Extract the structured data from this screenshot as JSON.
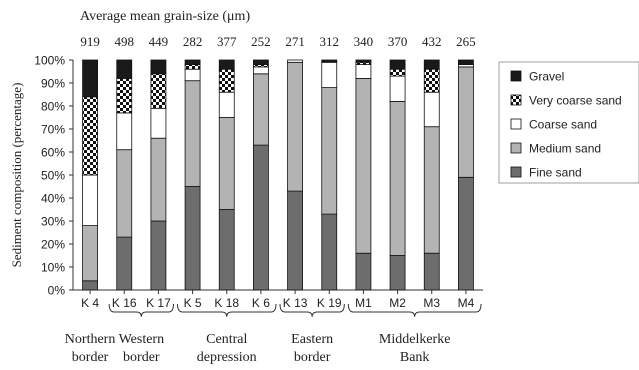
{
  "chart_data": {
    "type": "bar",
    "stacked": true,
    "top_title": "Average mean grain-size (μm)",
    "ylabel": "Sediment composition (percentage)",
    "xlabel": "",
    "ylim": [
      0,
      100
    ],
    "yticks": [
      "0%",
      "10%",
      "20%",
      "30%",
      "40%",
      "50%",
      "60%",
      "70%",
      "80%",
      "90%",
      "100%"
    ],
    "grid": false,
    "legend_position": "right",
    "categories": [
      "K 4",
      "K 16",
      "K 17",
      "K 5",
      "K 18",
      "K 6",
      "K 13",
      "K 19",
      "M1",
      "M2",
      "M3",
      "M4"
    ],
    "grain_sizes": [
      "919",
      "498",
      "449",
      "282",
      "377",
      "252",
      "271",
      "312",
      "340",
      "370",
      "432",
      "265"
    ],
    "series": [
      {
        "name": "Fine sand",
        "color": "#6d6d6d",
        "pattern": "solid",
        "values": [
          4,
          23,
          30,
          45,
          35,
          63,
          43,
          33,
          16,
          15,
          16,
          49
        ]
      },
      {
        "name": "Medium sand",
        "color": "#b3b3b3",
        "pattern": "solid",
        "values": [
          24,
          38,
          36,
          46,
          40,
          31,
          56,
          55,
          76,
          67,
          55,
          48
        ]
      },
      {
        "name": "Coarse sand",
        "color": "#ffffff",
        "pattern": "solid",
        "values": [
          22,
          16,
          13,
          5,
          11,
          3,
          1,
          11,
          6,
          11,
          15,
          1
        ]
      },
      {
        "name": "Very coarse sand",
        "color": "#000000",
        "pattern": "checker",
        "values": [
          34,
          15,
          15,
          2,
          10,
          1,
          0,
          0,
          1,
          3,
          10,
          0
        ]
      },
      {
        "name": "Gravel",
        "color": "#1a1a1a",
        "pattern": "solid",
        "values": [
          16,
          8,
          6,
          2,
          4,
          2,
          0,
          1,
          1,
          4,
          4,
          2
        ]
      }
    ],
    "legend_order": [
      "Gravel",
      "Very coarse sand",
      "Coarse sand",
      "Medium sand",
      "Fine sand"
    ],
    "groups": [
      {
        "lines": [
          "Northern",
          "border"
        ],
        "start": 0,
        "end": 0,
        "brace": false
      },
      {
        "lines": [
          "Western",
          "border"
        ],
        "start": 1,
        "end": 2,
        "brace": true
      },
      {
        "lines": [
          "Central",
          "depression"
        ],
        "start": 3,
        "end": 5,
        "brace": true
      },
      {
        "lines": [
          "Eastern",
          "border"
        ],
        "start": 6,
        "end": 7,
        "brace": true
      },
      {
        "lines": [
          "Middelkerke",
          "Bank"
        ],
        "start": 8,
        "end": 11,
        "brace": true
      }
    ]
  }
}
